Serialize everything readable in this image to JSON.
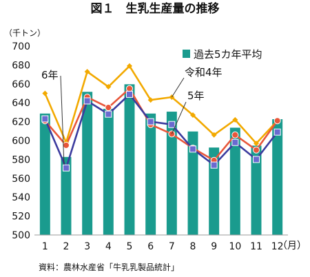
{
  "chart_data": {
    "type": "bar",
    "title": "図１　生乳生産量の推移",
    "ylabel": "（千トン）",
    "xlabel_unit": "（月）",
    "source": "資料：農林水産省「牛乳乳製品統計」",
    "categories": [
      "1",
      "2",
      "3",
      "4",
      "5",
      "6",
      "7",
      "8",
      "9",
      "10",
      "11",
      "12"
    ],
    "ylim": [
      500,
      700
    ],
    "yticks": [
      500,
      520,
      540,
      560,
      580,
      600,
      620,
      640,
      660,
      680,
      700
    ],
    "ytick_labels": [
      "500",
      "520",
      "540",
      "560",
      "580",
      "600",
      "620",
      "640",
      "660",
      "680",
      "700"
    ],
    "grid": false,
    "legend_position": "top-right",
    "bar_series": {
      "name": "過去5カ年平均",
      "color": "#1a9b8e",
      "values": [
        629,
        583,
        652,
        634,
        660,
        629,
        631,
        610,
        593,
        614,
        595,
        623
      ]
    },
    "series": [
      {
        "name": "6年",
        "color": "#3b3b9e",
        "marker_color": "#6a6ad0",
        "marker": "square",
        "values": [
          623,
          571,
          642,
          628,
          649,
          620,
          617,
          591,
          574,
          598,
          580,
          609
        ]
      },
      {
        "name": "令和4年",
        "color": "#f2a900",
        "marker_color": "#f2a900",
        "marker": "diamond",
        "values": [
          650,
          598,
          673,
          657,
          679,
          643,
          646,
          627,
          606,
          622,
          597,
          621
        ]
      },
      {
        "name": "5年",
        "color": "#e8563a",
        "marker_color": "#e8563a",
        "marker": "circle",
        "values": [
          621,
          595,
          646,
          635,
          655,
          617,
          607,
          592,
          579,
          606,
          590,
          621
        ]
      }
    ],
    "annotations": [
      {
        "text": "6年",
        "series": 0
      },
      {
        "text": "令和4年",
        "series": 1
      },
      {
        "text": "5年",
        "series": 2
      }
    ]
  }
}
